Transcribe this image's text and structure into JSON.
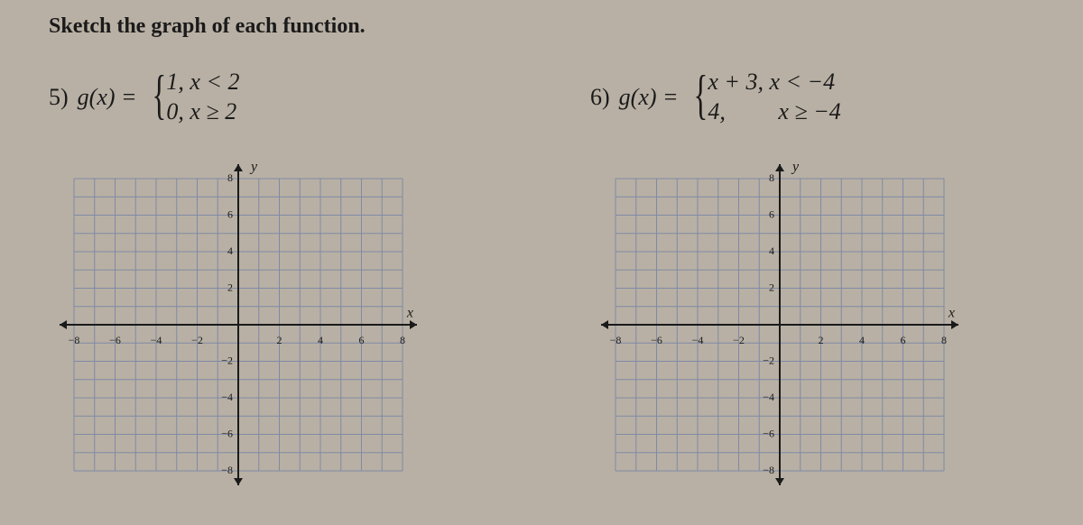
{
  "title": "Sketch the graph of each function.",
  "problems": [
    {
      "number": "5)",
      "fn_left": "g(x) =",
      "cases": [
        {
          "text": "1, x < 2"
        },
        {
          "text": "0, x ≥ 2"
        }
      ]
    },
    {
      "number": "6)",
      "fn_left": "g(x) =",
      "cases": [
        {
          "text": "x + 3, x < −4"
        },
        {
          "text": "4,         x ≥ −4"
        }
      ]
    }
  ],
  "grid": {
    "xmin": -8,
    "xmax": 8,
    "ymin": -8,
    "ymax": 8,
    "xticks": [
      -8,
      -6,
      -4,
      -2,
      2,
      4,
      6,
      8
    ],
    "yticks": [
      -8,
      -6,
      -4,
      -2,
      2,
      4,
      6,
      8
    ],
    "grid_step": 1,
    "y_label": "y",
    "x_label": "x",
    "colors": {
      "grid": "#7f8aa6",
      "axis": "#1a1a1a",
      "ticklabel": "#1a1a1a",
      "bg": "#b8b0a4"
    },
    "stroke": {
      "grid": 1,
      "axis": 2
    },
    "label_fontsize": 12,
    "axis_label_fontsize": 16
  }
}
